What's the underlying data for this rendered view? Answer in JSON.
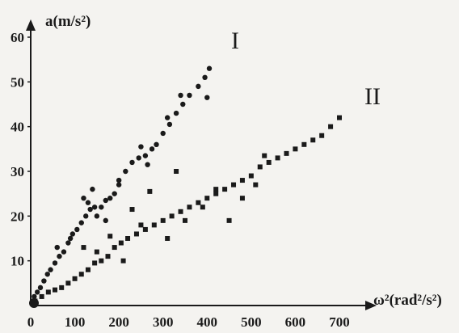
{
  "chart_data": {
    "type": "scatter",
    "title": "",
    "xlabel": "ω²(rad²/s²)",
    "ylabel": "a(m/s²)",
    "xlim": [
      0,
      700
    ],
    "ylim": [
      0,
      60
    ],
    "x_ticks": [
      "0",
      "100",
      "200",
      "300",
      "400",
      "500",
      "600",
      "700"
    ],
    "y_ticks": [
      "10",
      "20",
      "30",
      "40",
      "50",
      "60"
    ],
    "grid": false,
    "legend": "none",
    "series": [
      {
        "name": "I",
        "color": "#1a1a1a",
        "marker": "dot",
        "points": [
          [
            8,
            2
          ],
          [
            15,
            3
          ],
          [
            22,
            4
          ],
          [
            30,
            5.5
          ],
          [
            38,
            7
          ],
          [
            45,
            8
          ],
          [
            55,
            9.5
          ],
          [
            65,
            11
          ],
          [
            75,
            12
          ],
          [
            85,
            14
          ],
          [
            95,
            16
          ],
          [
            105,
            17
          ],
          [
            115,
            18.5
          ],
          [
            125,
            20
          ],
          [
            135,
            21.5
          ],
          [
            145,
            22
          ],
          [
            160,
            22
          ],
          [
            170,
            23.5
          ],
          [
            180,
            24
          ],
          [
            190,
            25
          ],
          [
            200,
            27
          ],
          [
            215,
            30
          ],
          [
            230,
            32
          ],
          [
            245,
            33
          ],
          [
            260,
            33.5
          ],
          [
            275,
            35
          ],
          [
            285,
            36
          ],
          [
            300,
            38.5
          ],
          [
            315,
            40.5
          ],
          [
            330,
            43
          ],
          [
            345,
            45
          ],
          [
            360,
            47
          ],
          [
            380,
            49
          ],
          [
            395,
            51
          ],
          [
            405,
            53
          ],
          [
            120,
            24
          ],
          [
            130,
            23
          ],
          [
            140,
            26
          ],
          [
            200,
            28
          ],
          [
            310,
            42
          ],
          [
            340,
            47
          ],
          [
            400,
            46.5
          ],
          [
            60,
            13
          ],
          [
            90,
            15
          ],
          [
            150,
            20
          ],
          [
            170,
            19
          ],
          [
            250,
            35.5
          ],
          [
            265,
            31.5
          ]
        ]
      },
      {
        "name": "II",
        "color": "#1a1a1a",
        "marker": "square",
        "points": [
          [
            10,
            1
          ],
          [
            25,
            2
          ],
          [
            40,
            3
          ],
          [
            55,
            3.5
          ],
          [
            70,
            4
          ],
          [
            85,
            5
          ],
          [
            100,
            6
          ],
          [
            115,
            7
          ],
          [
            130,
            8
          ],
          [
            145,
            9.5
          ],
          [
            160,
            10
          ],
          [
            175,
            11
          ],
          [
            190,
            13
          ],
          [
            205,
            14
          ],
          [
            220,
            15
          ],
          [
            240,
            16
          ],
          [
            260,
            17
          ],
          [
            280,
            18
          ],
          [
            300,
            19
          ],
          [
            320,
            20
          ],
          [
            340,
            21
          ],
          [
            360,
            22
          ],
          [
            380,
            23
          ],
          [
            400,
            24
          ],
          [
            420,
            25
          ],
          [
            440,
            26
          ],
          [
            460,
            27
          ],
          [
            480,
            28
          ],
          [
            500,
            29
          ],
          [
            520,
            31
          ],
          [
            540,
            32
          ],
          [
            560,
            33
          ],
          [
            580,
            34
          ],
          [
            600,
            35
          ],
          [
            620,
            36
          ],
          [
            640,
            37
          ],
          [
            660,
            38
          ],
          [
            680,
            40
          ],
          [
            700,
            42
          ],
          [
            120,
            13
          ],
          [
            150,
            12
          ],
          [
            210,
            10
          ],
          [
            250,
            18
          ],
          [
            310,
            15
          ],
          [
            350,
            19
          ],
          [
            390,
            22
          ],
          [
            420,
            26
          ],
          [
            450,
            19
          ],
          [
            480,
            24
          ],
          [
            510,
            27
          ],
          [
            530,
            33.5
          ],
          [
            270,
            25.5
          ],
          [
            230,
            21.5
          ],
          [
            180,
            15.5
          ],
          [
            330,
            30
          ]
        ]
      }
    ]
  }
}
